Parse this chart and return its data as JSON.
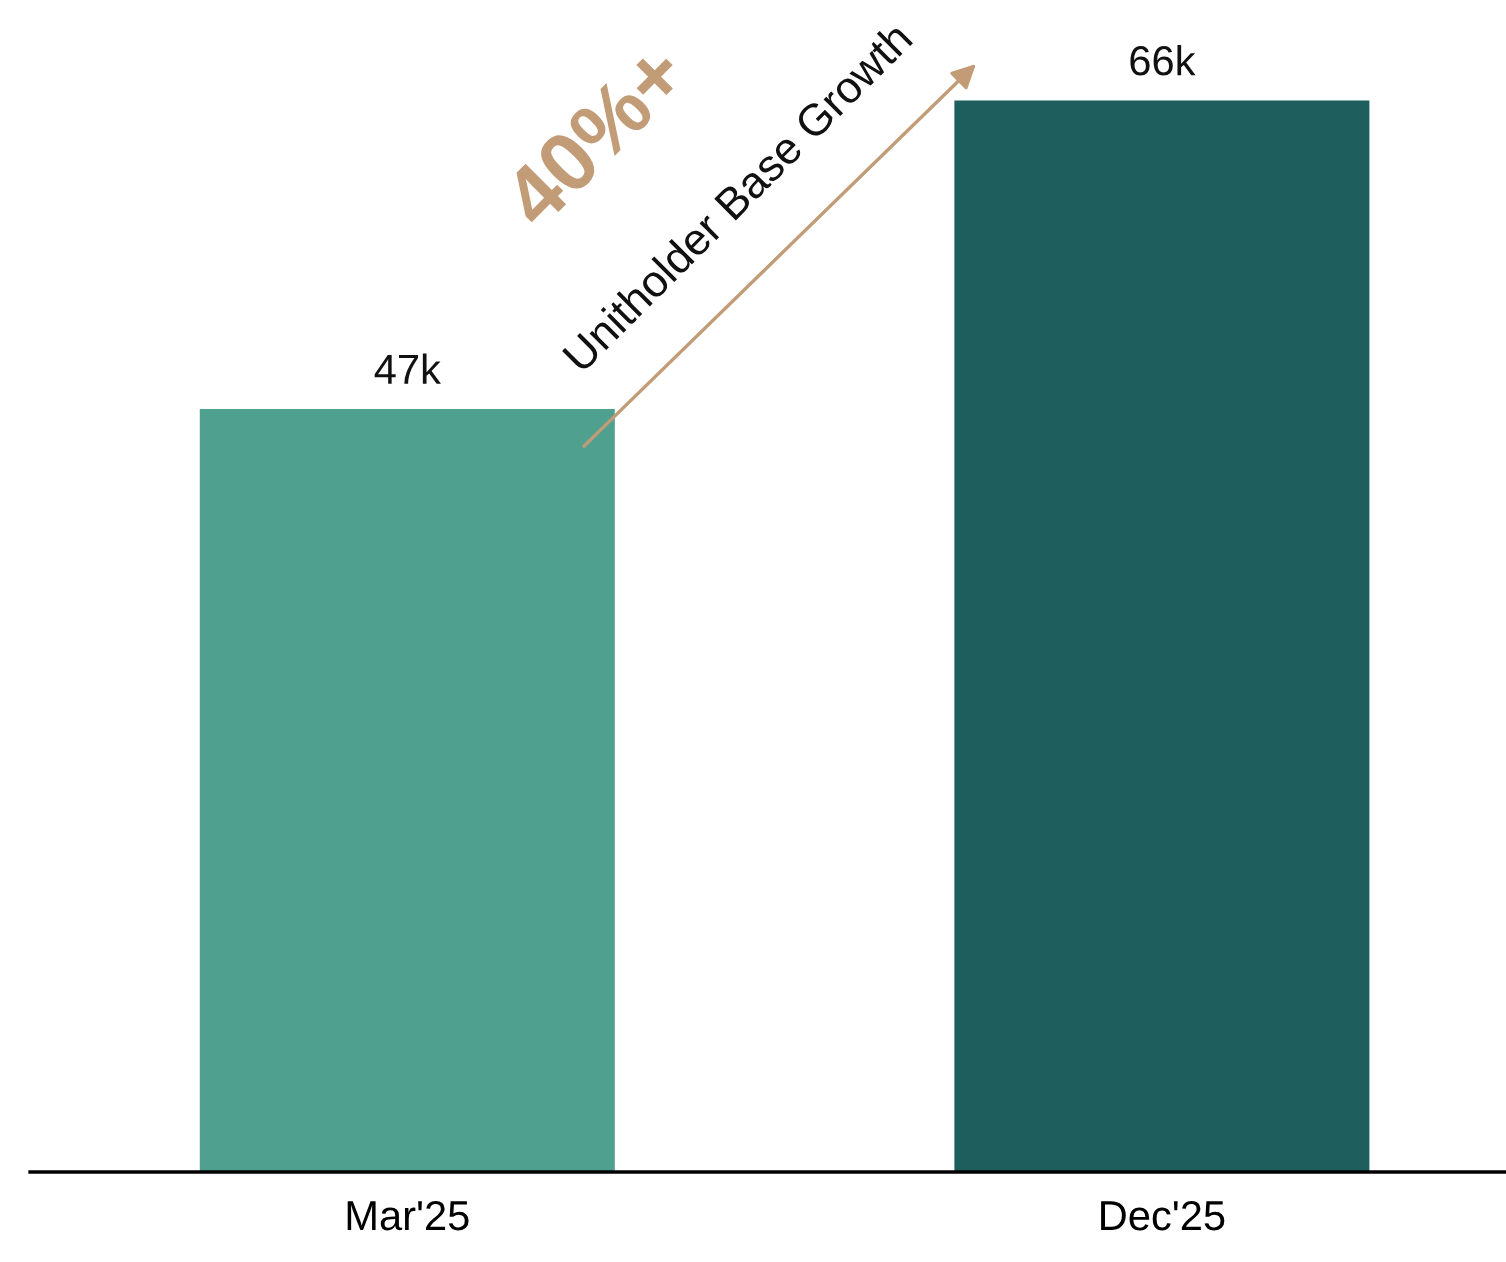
{
  "chart_data": {
    "type": "bar",
    "categories": [
      "Mar'25",
      "Dec'25"
    ],
    "values": [
      47,
      66
    ],
    "value_labels": [
      "47k",
      "66k"
    ],
    "colors": [
      "#4fa08e",
      "#1e5e5c"
    ],
    "tick_labels": "x",
    "grid": false,
    "legend": false,
    "annotations": [
      "40%+",
      "Unitholder Base Growth"
    ]
  }
}
